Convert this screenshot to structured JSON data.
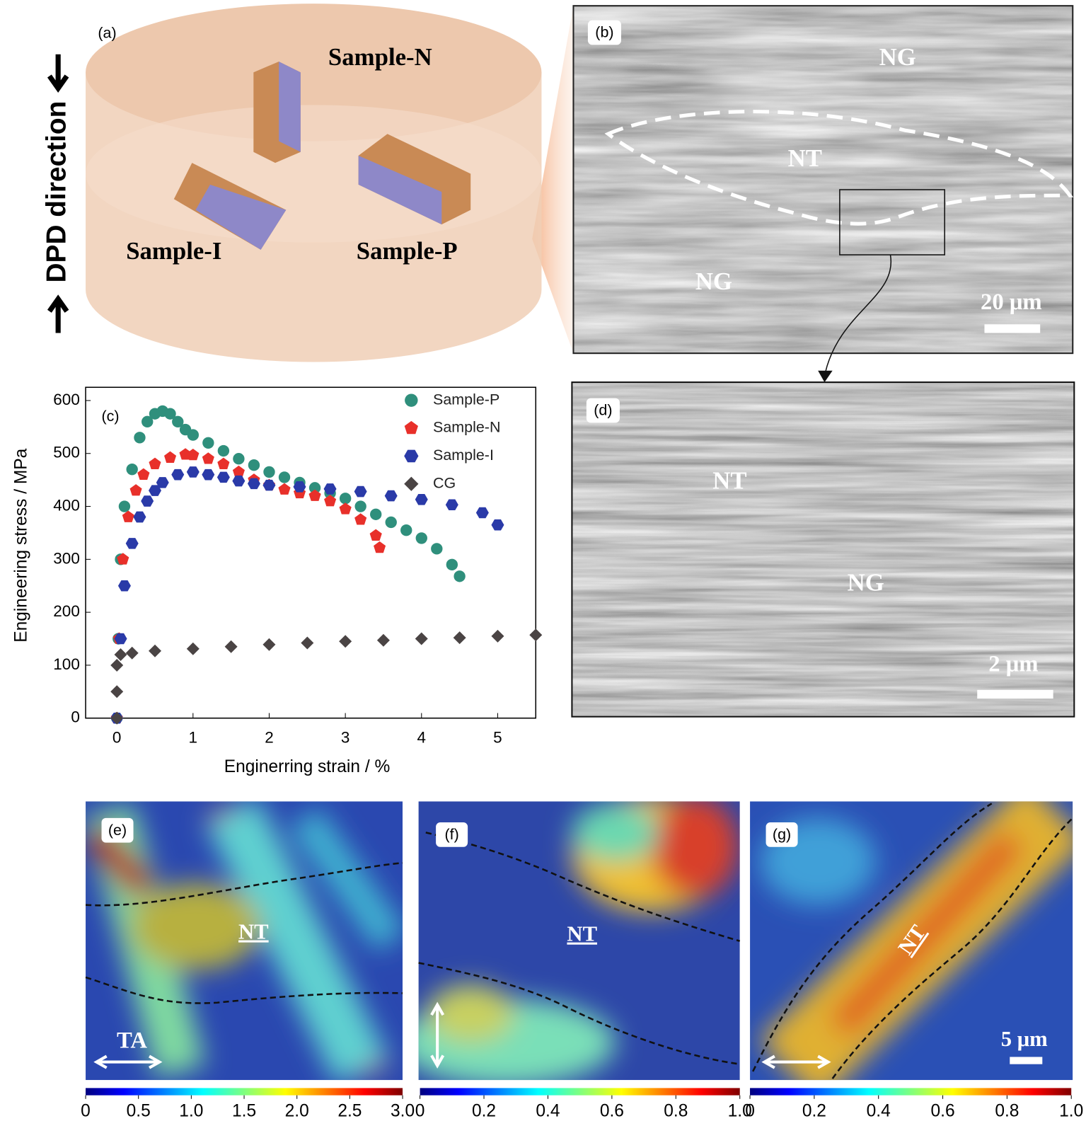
{
  "panel_a": {
    "label": "(a)",
    "samples": [
      "Sample-N",
      "Sample-I",
      "Sample-P"
    ],
    "direction": "DPD direction"
  },
  "panel_b": {
    "label": "(b)",
    "regions": [
      "NG",
      "NT",
      "NG"
    ],
    "scale_bar": "20 μm"
  },
  "panel_d": {
    "label": "(d)",
    "regions": [
      "NT",
      "NG"
    ],
    "scale_bar": "2 μm"
  },
  "panel_e": {
    "label": "(e)",
    "region": "NT",
    "axis_label": "TA",
    "colorbar": {
      "lim": [
        0,
        3
      ],
      "ticks": [
        0,
        0.5,
        {
          "value": 1,
          "label": "1.0"
        },
        1.5,
        {
          "value": 2,
          "label": "2.0"
        },
        2.5,
        {
          "value": 3,
          "label": "3.0"
        }
      ]
    }
  },
  "panel_f": {
    "label": "(f)",
    "region": "NT",
    "colorbar": {
      "lim": [
        0,
        1
      ],
      "ticks": [
        0,
        0.2,
        0.4,
        0.6,
        0.8,
        {
          "value": 1,
          "label": "1.0"
        }
      ]
    }
  },
  "panel_g": {
    "label": "(g)",
    "region": "NT",
    "scale_bar": "5 μm",
    "colorbar": {
      "lim": [
        0,
        1
      ],
      "ticks": [
        0,
        0.2,
        0.4,
        0.6,
        0.8,
        {
          "value": 1,
          "label": "1.0"
        }
      ]
    }
  },
  "chart_data": {
    "type": "scatter",
    "label": "(c)",
    "xlabel": "Enginerring strain / %",
    "ylabel": "Engineering stress / MPa",
    "xlim": [
      -0.41,
      5.5
    ],
    "ylim": [
      0,
      625
    ],
    "xticks": [
      0,
      1,
      2,
      3,
      4,
      5
    ],
    "yticks": [
      0,
      100,
      200,
      300,
      400,
      500,
      600
    ],
    "legend": "upper right",
    "grid": false,
    "series": [
      {
        "name": "Sample-P",
        "color": "#2f8f7c",
        "marker": "circle",
        "x": [
          0,
          0.02,
          0.05,
          0.1,
          0.2,
          0.3,
          0.4,
          0.5,
          0.6,
          0.7,
          0.8,
          0.9,
          1.0,
          1.2,
          1.4,
          1.6,
          1.8,
          2.0,
          2.2,
          2.4,
          2.6,
          2.8,
          3.0,
          3.2,
          3.4,
          3.6,
          3.8,
          4.0,
          4.2,
          4.4,
          4.5
        ],
        "values": [
          0,
          150,
          300,
          400,
          470,
          530,
          560,
          575,
          580,
          575,
          560,
          545,
          535,
          520,
          505,
          490,
          478,
          465,
          455,
          445,
          435,
          425,
          415,
          400,
          385,
          370,
          355,
          340,
          320,
          290,
          268
        ]
      },
      {
        "name": "Sample-N",
        "color": "#e8302a",
        "marker": "pentagon",
        "x": [
          0,
          0.03,
          0.08,
          0.15,
          0.25,
          0.35,
          0.5,
          0.7,
          0.9,
          1.0,
          1.2,
          1.4,
          1.6,
          1.8,
          2.0,
          2.2,
          2.4,
          2.6,
          2.8,
          3.0,
          3.2,
          3.4,
          3.45
        ],
        "values": [
          0,
          150,
          300,
          380,
          430,
          460,
          480,
          492,
          498,
          497,
          490,
          480,
          465,
          450,
          440,
          432,
          425,
          420,
          410,
          395,
          375,
          345,
          322
        ]
      },
      {
        "name": "Sample-I",
        "color": "#2a3aa8",
        "marker": "hexagon",
        "x": [
          0,
          0.05,
          0.1,
          0.2,
          0.3,
          0.4,
          0.5,
          0.6,
          0.8,
          1.0,
          1.2,
          1.4,
          1.6,
          1.8,
          2.0,
          2.4,
          2.8,
          3.2,
          3.6,
          4.0,
          4.4,
          4.8,
          5.0
        ],
        "values": [
          0,
          150,
          250,
          330,
          380,
          410,
          430,
          445,
          460,
          465,
          460,
          455,
          448,
          443,
          440,
          437,
          433,
          428,
          420,
          413,
          403,
          388,
          365
        ]
      },
      {
        "name": "CG",
        "color": "#4a4444",
        "marker": "diamond",
        "x": [
          0,
          0,
          0,
          0.05,
          0.2,
          0.5,
          1,
          1.5,
          2,
          2.5,
          3,
          3.5,
          4,
          4.5,
          5,
          5.5
        ],
        "values": [
          0,
          50,
          100,
          120,
          123,
          127,
          131,
          135,
          139,
          142,
          145,
          147,
          150,
          152,
          155,
          157
        ]
      }
    ]
  }
}
